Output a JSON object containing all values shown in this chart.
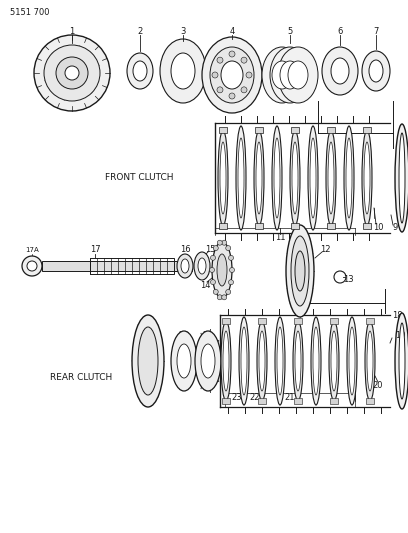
{
  "title": "5151 700",
  "bg_color": "#ffffff",
  "line_color": "#1a1a1a",
  "label_color": "#1a1a1a",
  "front_clutch_label": "FRONT CLUTCH",
  "rear_clutch_label": "REAR CLUTCH",
  "fig_w": 4.08,
  "fig_h": 5.33,
  "dpi": 100
}
